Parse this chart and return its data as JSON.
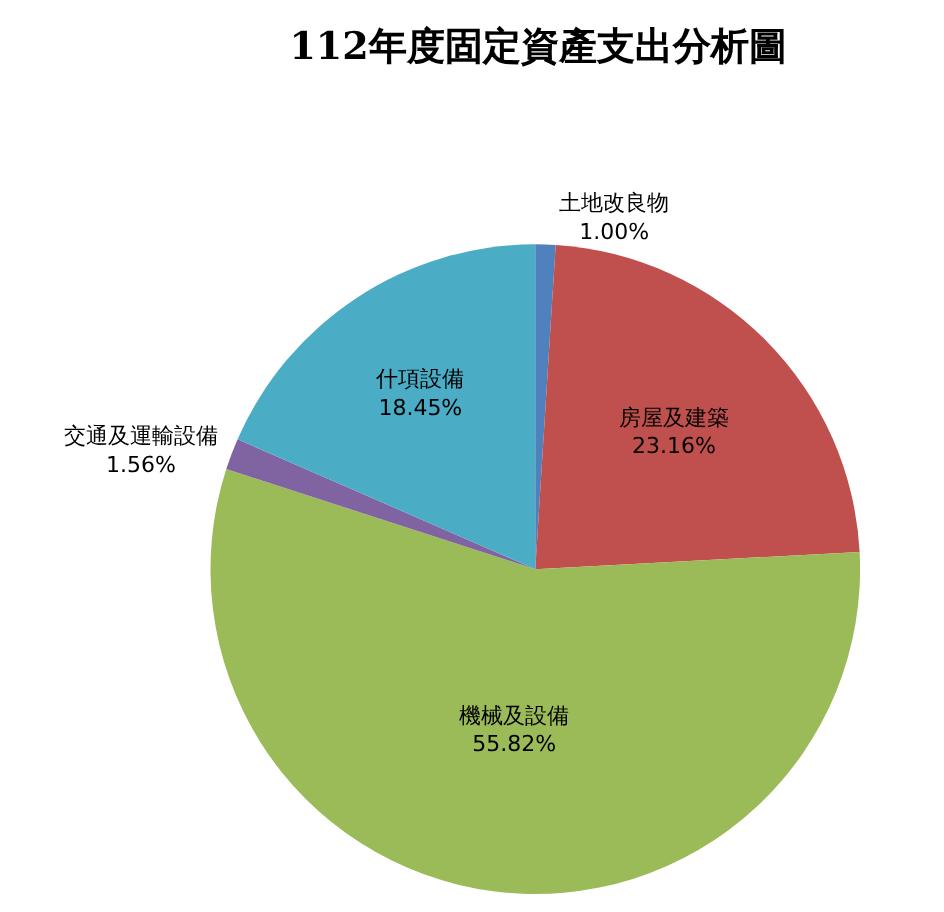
{
  "chart_data": {
    "type": "pie",
    "title": "112年度固定資產支出分析圖",
    "categories": [
      "土地改良物",
      "房屋及建築",
      "機械及設備",
      "交通及運輸設備",
      "什項設備"
    ],
    "values": [
      1.0,
      23.16,
      55.82,
      1.56,
      18.45
    ],
    "value_labels": [
      "1.00%",
      "23.16%",
      "55.82%",
      "1.56%",
      "18.45%"
    ],
    "colors": [
      "#4f81bd",
      "#c0504d",
      "#9bbb59",
      "#8064a2",
      "#4bacc6"
    ],
    "legend": false
  }
}
